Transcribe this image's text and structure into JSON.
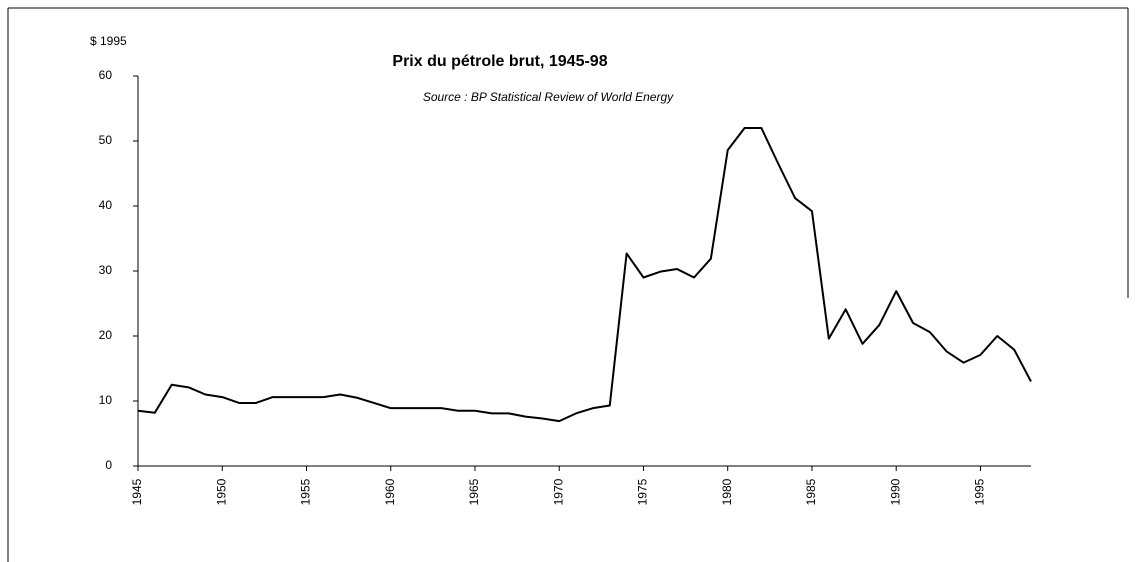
{
  "chart_data": {
    "type": "line",
    "title": "Prix du pétrole brut, 1945-98",
    "subtitle": "Source : BP Statistical Review of World Energy",
    "ylabel": "$ 1995",
    "color": "#000000",
    "x": [
      1945,
      1946,
      1947,
      1948,
      1949,
      1950,
      1951,
      1952,
      1953,
      1954,
      1955,
      1956,
      1957,
      1958,
      1959,
      1960,
      1961,
      1962,
      1963,
      1964,
      1965,
      1966,
      1967,
      1968,
      1969,
      1970,
      1971,
      1972,
      1973,
      1974,
      1975,
      1976,
      1977,
      1978,
      1979,
      1980,
      1981,
      1982,
      1983,
      1984,
      1985,
      1986,
      1987,
      1988,
      1989,
      1990,
      1991,
      1992,
      1993,
      1994,
      1995,
      1996,
      1997,
      1998
    ],
    "values": [
      8.5,
      8.2,
      12.5,
      12.1,
      11,
      10.6,
      9.7,
      9.7,
      10.6,
      10.6,
      10.6,
      10.6,
      11,
      10.5,
      9.7,
      8.9,
      8.9,
      8.9,
      8.9,
      8.5,
      8.5,
      8.1,
      8.1,
      7.6,
      7.3,
      6.9,
      8.1,
      8.9,
      9.3,
      32.7,
      29,
      29.9,
      30.3,
      29,
      31.9,
      48.6,
      52,
      52,
      46.5,
      41.2,
      39.2,
      19.6,
      24.1,
      18.8,
      21.7,
      26.9,
      22,
      20.6,
      17.6,
      15.9,
      17.1,
      20,
      17.9,
      13
    ],
    "xlim": [
      1945,
      1998
    ],
    "xticks": [
      1945,
      1950,
      1955,
      1960,
      1965,
      1970,
      1975,
      1980,
      1985,
      1990,
      1995
    ],
    "ylim": [
      0,
      60
    ],
    "yticks": [
      0,
      10,
      20,
      30,
      40,
      50,
      60
    ]
  }
}
